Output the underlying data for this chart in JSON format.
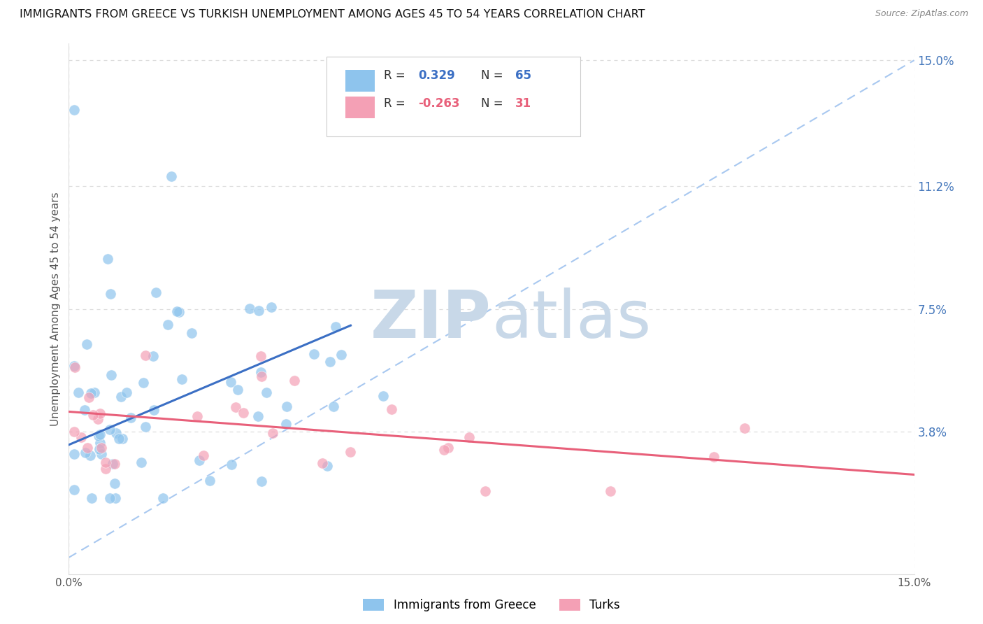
{
  "title": "IMMIGRANTS FROM GREECE VS TURKISH UNEMPLOYMENT AMONG AGES 45 TO 54 YEARS CORRELATION CHART",
  "source": "Source: ZipAtlas.com",
  "ylabel": "Unemployment Among Ages 45 to 54 years",
  "watermark_zip": "ZIP",
  "watermark_atlas": "atlas",
  "xmin": 0.0,
  "xmax": 0.15,
  "ymin": -0.005,
  "ymax": 0.155,
  "yticks": [
    0.038,
    0.075,
    0.112,
    0.15
  ],
  "ytick_labels": [
    "3.8%",
    "7.5%",
    "11.2%",
    "15.0%"
  ],
  "xtick_left_label": "0.0%",
  "xtick_right_label": "15.0%",
  "color_blue": "#8EC4ED",
  "color_pink": "#F4A0B5",
  "color_line_blue": "#3B6FC4",
  "color_line_pink": "#E8607A",
  "color_trend": "#A8C8F0",
  "background_color": "#FFFFFF",
  "grid_color": "#DDDDDD",
  "blue_line_x0": 0.0,
  "blue_line_y0": 0.034,
  "blue_line_x1": 0.05,
  "blue_line_y1": 0.07,
  "pink_line_x0": 0.0,
  "pink_line_y0": 0.044,
  "pink_line_x1": 0.15,
  "pink_line_y1": 0.025,
  "trend_x0": 0.0,
  "trend_y0": 0.0,
  "trend_x1": 0.15,
  "trend_y1": 0.15,
  "legend_r1_label": "R = ",
  "legend_r1_val": "0.329",
  "legend_n1_label": "N = ",
  "legend_n1_val": "65",
  "legend_r2_label": "R = ",
  "legend_r2_val": "-0.263",
  "legend_n2_label": "N = ",
  "legend_n2_val": "31",
  "bottom_legend1": "Immigrants from Greece",
  "bottom_legend2": "Turks"
}
